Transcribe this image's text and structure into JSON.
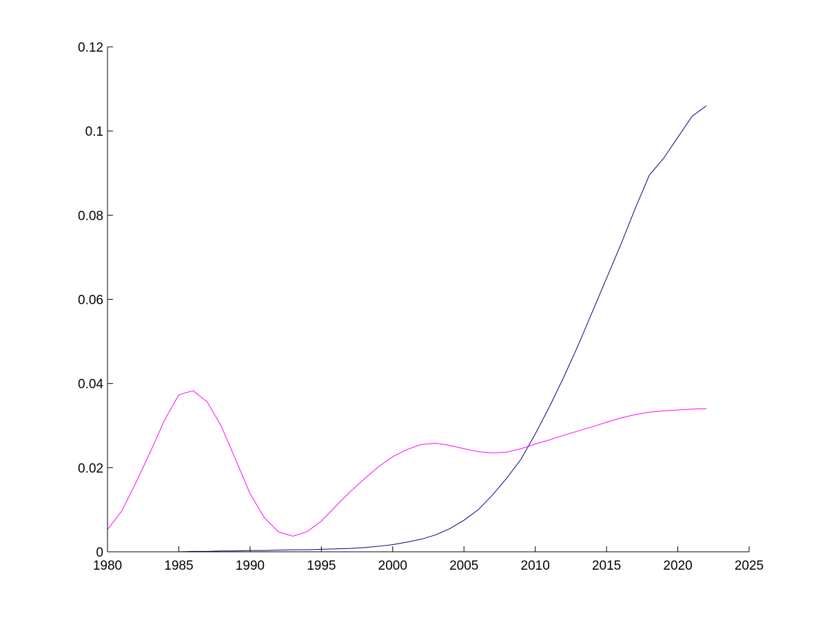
{
  "chart_data": {
    "type": "line",
    "title": "",
    "xlabel": "",
    "ylabel": "",
    "xlim": [
      1980,
      2025
    ],
    "ylim": [
      0,
      0.12
    ],
    "grid": false,
    "x_ticks": [
      1980,
      1985,
      1990,
      1995,
      2000,
      2005,
      2010,
      2015,
      2020,
      2025
    ],
    "x_tick_labels": [
      "1980",
      "1985",
      "1990",
      "1995",
      "2000",
      "2005",
      "2010",
      "2015",
      "2020",
      "2025"
    ],
    "y_ticks": [
      0,
      0.02,
      0.04,
      0.06,
      0.08,
      0.1,
      0.12
    ],
    "y_tick_labels": [
      "0",
      "0.02",
      "0.04",
      "0.06",
      "0.08",
      "0.1",
      "0.12"
    ],
    "x": [
      1980,
      1981,
      1982,
      1983,
      1984,
      1985,
      1986,
      1987,
      1988,
      1989,
      1990,
      1991,
      1992,
      1993,
      1994,
      1995,
      1996,
      1997,
      1998,
      1999,
      2000,
      2001,
      2002,
      2003,
      2004,
      2005,
      2006,
      2007,
      2008,
      2009,
      2010,
      2011,
      2012,
      2013,
      2014,
      2015,
      2016,
      2017,
      2018,
      2019,
      2020,
      2021,
      2022
    ],
    "series": [
      {
        "color": "#000080",
        "values": [
          0,
          0,
          0,
          0,
          0,
          0,
          0.0001,
          0.0001,
          0.0002,
          0.0002,
          0.0003,
          0.0003,
          0.0004,
          0.0005,
          0.0005,
          0.0006,
          0.0007,
          0.0008,
          0.001,
          0.0013,
          0.0017,
          0.0023,
          0.003,
          0.004,
          0.0055,
          0.0075,
          0.01,
          0.0135,
          0.0175,
          0.022,
          0.028,
          0.0345,
          0.0415,
          0.049,
          0.057,
          0.065,
          0.073,
          0.0815,
          0.0895,
          0.0935,
          0.0985,
          0.1035,
          0.106
        ]
      },
      {
        "color": "#ff00ff",
        "values": [
          0.0053,
          0.0097,
          0.0165,
          0.0237,
          0.0313,
          0.0373,
          0.0383,
          0.0356,
          0.0297,
          0.0218,
          0.0138,
          0.0081,
          0.0047,
          0.0037,
          0.0048,
          0.0073,
          0.0108,
          0.0142,
          0.0173,
          0.0202,
          0.0226,
          0.0243,
          0.0255,
          0.0258,
          0.0253,
          0.0245,
          0.0238,
          0.0235,
          0.0237,
          0.0245,
          0.0256,
          0.0266,
          0.0277,
          0.0287,
          0.0297,
          0.0308,
          0.0318,
          0.0326,
          0.0332,
          0.0335,
          0.0337,
          0.0339,
          0.034
        ]
      }
    ]
  }
}
